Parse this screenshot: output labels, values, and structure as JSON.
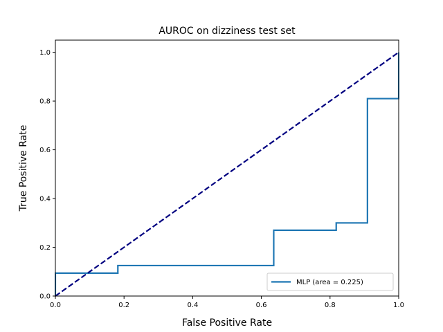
{
  "chart_data": {
    "type": "line",
    "title": "AUROC on dizziness test set",
    "xlabel": "False Positive Rate",
    "ylabel": "True Positive Rate",
    "xlim": [
      0.0,
      1.0
    ],
    "ylim": [
      0.0,
      1.05
    ],
    "xticks": [
      "0.0",
      "0.2",
      "0.4",
      "0.6",
      "0.8",
      "1.0"
    ],
    "yticks": [
      "0.0",
      "0.2",
      "0.4",
      "0.6",
      "0.8",
      "1.0"
    ],
    "grid": false,
    "legend_position": "lower right",
    "series": [
      {
        "name": "MLP (area = 0.225)",
        "color": "#1f77b4",
        "style": "solid",
        "x": [
          0.0,
          0.0,
          0.182,
          0.182,
          0.636,
          0.636,
          0.818,
          0.818,
          0.909,
          0.909,
          1.0,
          1.0
        ],
        "y": [
          0.0,
          0.094,
          0.094,
          0.125,
          0.125,
          0.27,
          0.27,
          0.3,
          0.3,
          0.81,
          0.81,
          1.0
        ]
      },
      {
        "color": "#000080",
        "style": "dashed",
        "x": [
          0.0,
          1.0
        ],
        "y": [
          0.0,
          1.0
        ]
      }
    ]
  }
}
